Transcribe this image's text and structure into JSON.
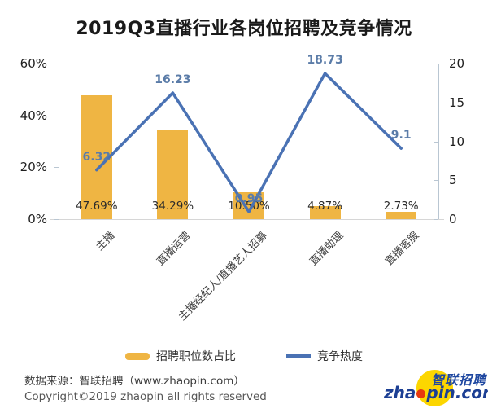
{
  "title": "2019Q3直播行业各岗位招聘及竞争情况",
  "chart_data": {
    "type": "bar+line",
    "categories": [
      "主播",
      "直播运营",
      "主播经纪人/直播艺人招募",
      "直播助理",
      "直播客服"
    ],
    "series": [
      {
        "name": "招聘职位数占比",
        "type": "bar",
        "axis": "left",
        "unit": "%",
        "values": [
          47.69,
          34.29,
          10.5,
          4.87,
          2.73
        ],
        "labels": [
          "47.69%",
          "34.29%",
          "10.50%",
          "4.87%",
          "2.73%"
        ]
      },
      {
        "name": "竞争热度",
        "type": "line",
        "axis": "right",
        "values": [
          6.32,
          16.23,
          0.95,
          18.73,
          9.1
        ],
        "labels": [
          "6.32",
          "16.23",
          "0.95",
          "18.73",
          "9.1"
        ]
      }
    ],
    "left_axis": {
      "min": 0,
      "max": 60,
      "ticks": [
        {
          "label": "60%",
          "v": 60
        },
        {
          "label": "40%",
          "v": 40
        },
        {
          "label": "20%",
          "v": 20
        },
        {
          "label": "0%",
          "v": 0
        }
      ]
    },
    "right_axis": {
      "min": 0,
      "max": 20,
      "ticks": [
        {
          "label": "20",
          "v": 20
        },
        {
          "label": "15",
          "v": 15
        },
        {
          "label": "10",
          "v": 10
        },
        {
          "label": "5",
          "v": 5
        },
        {
          "label": "0",
          "v": 0
        }
      ]
    },
    "grid": false,
    "legend_position": "bottom"
  },
  "legend": {
    "bar_label": "招聘职位数占比",
    "line_label": "竞争热度"
  },
  "footer": {
    "source": "数据来源：智联招聘（www.zhaopin.com）",
    "copyright": "Copyright©2019 zhaopin all rights reserved"
  },
  "logo": {
    "cn": "智联招聘",
    "en_prefix": "zha",
    "en_suffix": "pin.com"
  },
  "colors": {
    "bar": "#EFB543",
    "line": "#4A72B4",
    "line_label": "#5B7CA8",
    "logo_blue": "#1C3F94",
    "logo_cn_blue": "#1E47A0",
    "logo_yellow": "#FCD600",
    "logo_red": "#E8380D"
  }
}
